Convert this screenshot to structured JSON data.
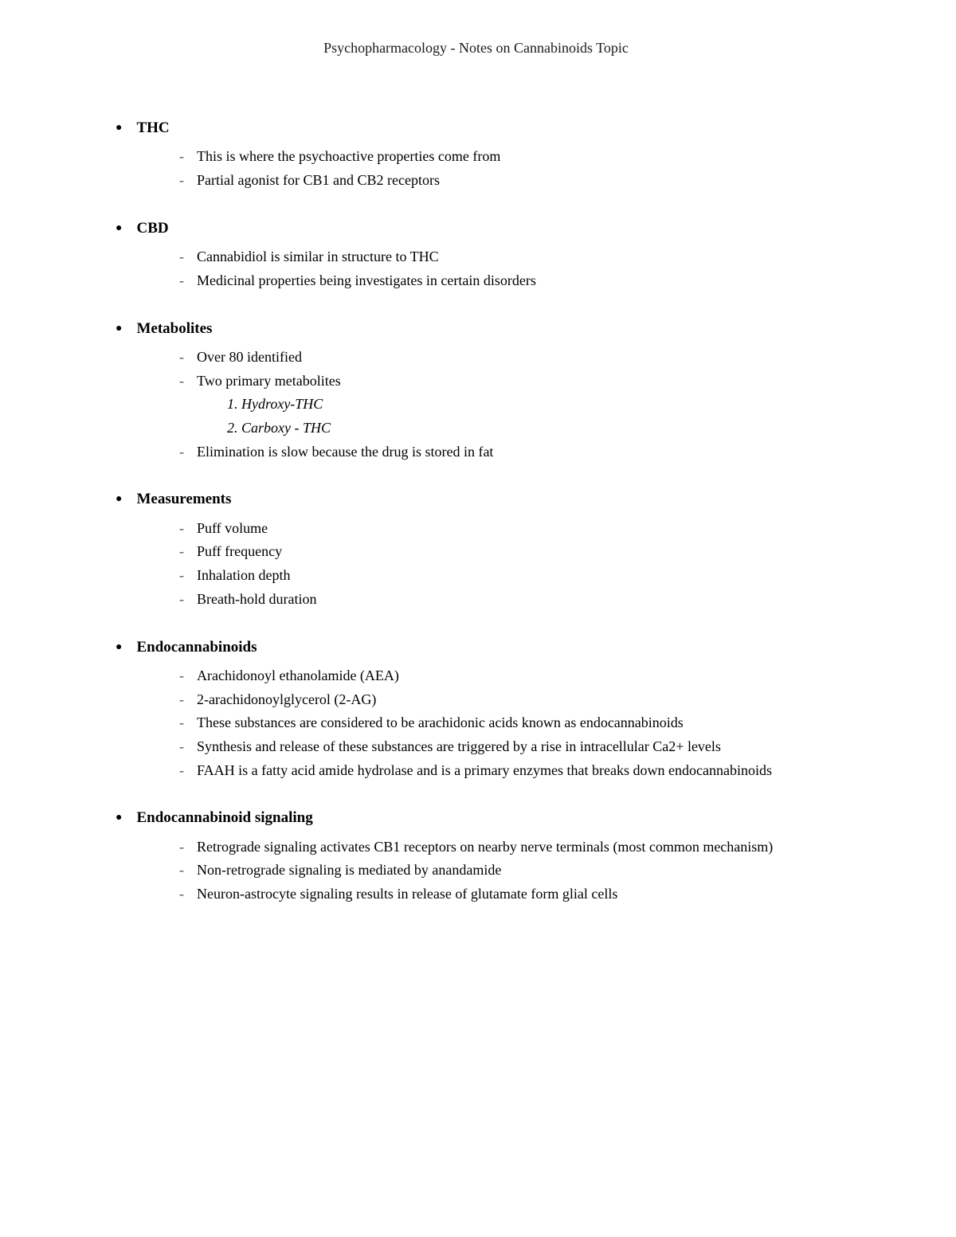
{
  "header": "Psychopharmacology - Notes on Cannabinoids Topic",
  "sections": [
    {
      "title": "THC",
      "items": [
        "This is where the psychoactive properties come from",
        "Partial agonist for CB1 and CB2 receptors"
      ]
    },
    {
      "title": "CBD",
      "items": [
        "Cannabidiol is similar in structure to THC",
        "Medicinal properties being investigates in certain disorders"
      ]
    },
    {
      "title": "Metabolites",
      "items": [
        "Over 80 identified",
        "Two primary metabolites",
        "Elimination is slow because the drug is stored in fat"
      ],
      "numbered": [
        "1.   Hydroxy-THC",
        "2.   Carboxy - THC"
      ]
    },
    {
      "title": "Measurements",
      "items": [
        "Puff volume",
        "Puff frequency",
        "Inhalation depth",
        "Breath-hold duration"
      ]
    },
    {
      "title": "Endocannabinoids",
      "items": [
        "Arachidonoyl ethanolamide (AEA)",
        "2-arachidonoylglycerol (2-AG)",
        "These substances are considered to be arachidonic acids known as endocannabinoids",
        "Synthesis and release of these substances are triggered by a rise in intracellular Ca2+ levels",
        "FAAH is a fatty acid amide hydrolase and is a primary enzymes that breaks down endocannabinoids"
      ]
    },
    {
      "title": "Endocannabinoid signaling",
      "items": [
        "Retrograde signaling activates CB1 receptors on nearby nerve terminals (most common mechanism)",
        "Non-retrograde signaling is mediated by anandamide",
        "Neuron-astrocyte signaling results in release of glutamate form glial cells"
      ]
    }
  ]
}
